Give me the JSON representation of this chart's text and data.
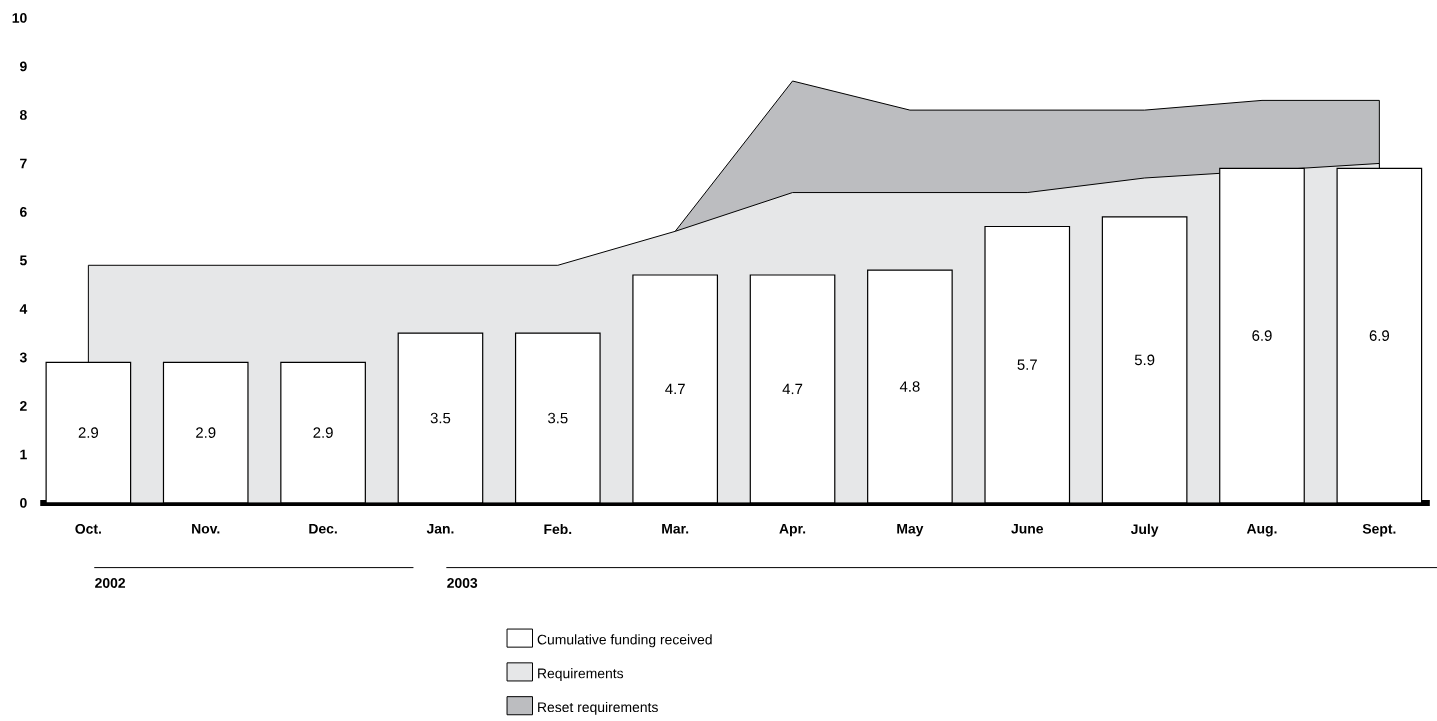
{
  "chart_data": {
    "type": "bar",
    "categories": [
      "Oct.",
      "Nov.",
      "Dec.",
      "Jan.",
      "Feb.",
      "Mar.",
      "Apr.",
      "May",
      "June",
      "July",
      "Aug.",
      "Sept."
    ],
    "series": [
      {
        "name": "Cumulative funding received",
        "color": "#ffffff",
        "values": [
          2.9,
          2.9,
          2.9,
          3.5,
          3.5,
          4.7,
          4.7,
          4.8,
          5.7,
          5.9,
          6.9,
          6.9
        ],
        "value_labels": [
          "2.9",
          "2.9",
          "2.9",
          "3.5",
          "3.5",
          "4.7",
          "4.7",
          "4.8",
          "5.7",
          "5.9",
          "6.9",
          "6.9"
        ]
      },
      {
        "name": "Requirements",
        "type": "area",
        "color": "#e6e7e8",
        "values": [
          4.9,
          4.9,
          4.9,
          4.9,
          4.9,
          5.6,
          6.4,
          6.4,
          6.4,
          6.7,
          null,
          7.0
        ]
      },
      {
        "name": "Reset requirements",
        "type": "area",
        "color": "#bcbdc0",
        "values": [
          null,
          null,
          null,
          null,
          null,
          5.6,
          8.7,
          8.1,
          8.1,
          8.1,
          8.3,
          8.3
        ]
      }
    ],
    "ylim": [
      0,
      10
    ],
    "yticks": [
      0,
      1,
      2,
      3,
      4,
      5,
      6,
      7,
      8,
      9,
      10
    ],
    "legend": "bottom",
    "grid": false,
    "annotations": [
      "2002",
      "2003"
    ]
  }
}
